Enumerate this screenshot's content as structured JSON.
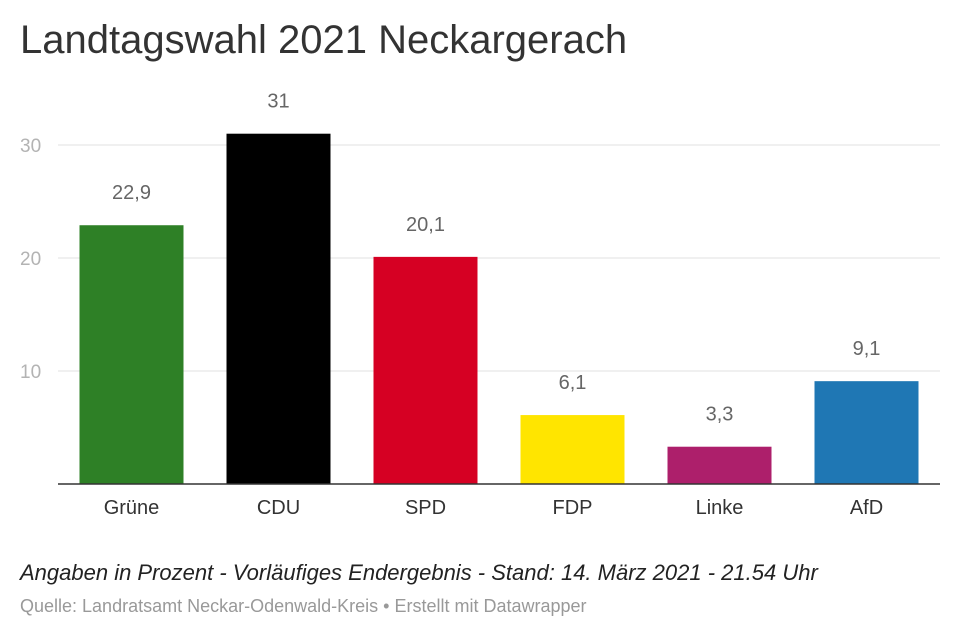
{
  "title": "Landtagswahl 2021 Neckargerach",
  "notes": "Angaben in Prozent - Vorläufiges Endergebnis - Stand: 14. März 2021 - 21.54 Uhr",
  "source": "Quelle: Landratsamt Neckar-Odenwald-Kreis • Erstellt mit Datawrapper",
  "chart_data": {
    "type": "bar",
    "title": "Landtagswahl 2021 Neckargerach",
    "xlabel": "",
    "ylabel": "",
    "categories": [
      "Grüne",
      "CDU",
      "SPD",
      "FDP",
      "Linke",
      "AfD"
    ],
    "values": [
      22.9,
      31,
      20.1,
      6.1,
      3.3,
      9.1
    ],
    "value_labels": [
      "22,9",
      "31",
      "20,1",
      "6,1",
      "3,3",
      "9,1"
    ],
    "colors": [
      "#2e8026",
      "#000000",
      "#d60023",
      "#ffe500",
      "#ad1f6b",
      "#1f77b4"
    ],
    "yticks": [
      10,
      20,
      30
    ],
    "ylim": [
      0,
      31
    ],
    "grid": true,
    "legend": "none"
  }
}
